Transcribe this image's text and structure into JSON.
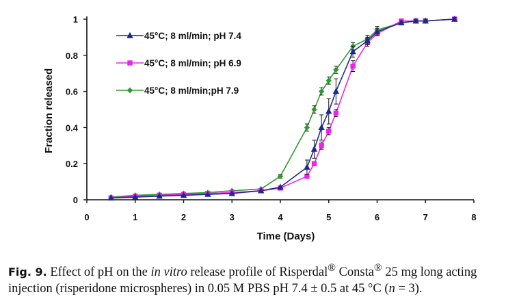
{
  "chart_data": {
    "type": "line",
    "xlabel": "Time (Days)",
    "ylabel": "Fraction released",
    "xlim": [
      0,
      8
    ],
    "ylim": [
      0,
      1
    ],
    "xticks": [
      "0",
      "1",
      "2",
      "3",
      "4",
      "5",
      "6",
      "7",
      "8"
    ],
    "yticks": [
      "0",
      "0.2",
      "0.4",
      "0.6",
      "0.8",
      "1"
    ],
    "legend_position": "top-left",
    "series": [
      {
        "name": "45°C; 8 ml/min; pH 7.4",
        "color": "#1a2a8c",
        "marker": "triangle",
        "x": [
          0.5,
          1,
          1.5,
          2,
          2.5,
          3,
          3.6,
          4,
          4.55,
          4.7,
          4.85,
          5,
          5.15,
          5.5,
          5.8,
          6,
          6.5,
          6.8,
          7,
          7.6
        ],
        "y": [
          0.01,
          0.015,
          0.02,
          0.025,
          0.03,
          0.035,
          0.05,
          0.07,
          0.18,
          0.28,
          0.4,
          0.49,
          0.6,
          0.82,
          0.88,
          0.93,
          0.98,
          0.99,
          0.99,
          1.0
        ],
        "errors": [
          0,
          0,
          0,
          0,
          0,
          0,
          0,
          0,
          0.04,
          0.05,
          0.07,
          0.07,
          0.07,
          0.03,
          0.02,
          0.02,
          0.01,
          0.01,
          0.01,
          0.01
        ]
      },
      {
        "name": "45°C; 8 ml/min; pH 6.9",
        "color": "#ee22ee",
        "marker": "square",
        "x": [
          0.5,
          1,
          1.5,
          2,
          2.5,
          3,
          3.6,
          4,
          4.55,
          4.7,
          4.85,
          5,
          5.15,
          5.5,
          5.8,
          6,
          6.5,
          6.8,
          7,
          7.6
        ],
        "y": [
          0.01,
          0.02,
          0.025,
          0.03,
          0.035,
          0.04,
          0.05,
          0.065,
          0.13,
          0.2,
          0.3,
          0.38,
          0.48,
          0.74,
          0.87,
          0.92,
          0.99,
          0.99,
          0.99,
          1.0
        ],
        "errors": [
          0,
          0,
          0,
          0,
          0,
          0,
          0,
          0,
          0.01,
          0.01,
          0.02,
          0.02,
          0.02,
          0.03,
          0.02,
          0.01,
          0.01,
          0.01,
          0.01,
          0.01
        ]
      },
      {
        "name": "45°C; 8 ml/min;pH 7.9",
        "color": "#2e9a2e",
        "marker": "diamond",
        "x": [
          0.5,
          1,
          1.5,
          2,
          2.5,
          3,
          3.6,
          4,
          4.55,
          4.7,
          4.85,
          5,
          5.15,
          5.5,
          5.8,
          6,
          6.5,
          6.8,
          7,
          7.6
        ],
        "y": [
          0.015,
          0.025,
          0.03,
          0.035,
          0.04,
          0.05,
          0.06,
          0.13,
          0.4,
          0.5,
          0.6,
          0.66,
          0.72,
          0.85,
          0.89,
          0.94,
          0.98,
          0.99,
          0.99,
          1.0
        ],
        "errors": [
          0,
          0,
          0,
          0,
          0,
          0,
          0,
          0.01,
          0.02,
          0.02,
          0.02,
          0.02,
          0.02,
          0.02,
          0.02,
          0.02,
          0.01,
          0.01,
          0.01,
          0.01
        ]
      }
    ]
  },
  "caption": {
    "label": "Fig. 9.",
    "text_1": "  Effect of pH on the ",
    "italic": "in vitro",
    "text_2": " release profile of Risperdal",
    "sup_1": "®",
    "text_3": " Consta",
    "sup_2": "®",
    "text_4": " 25 mg long acting injection (risperidone microspheres) in 0.05 M PBS pH 7.4 ± 0.5 at 45 °C (",
    "n_italic": "n",
    "text_5": " = 3)."
  }
}
